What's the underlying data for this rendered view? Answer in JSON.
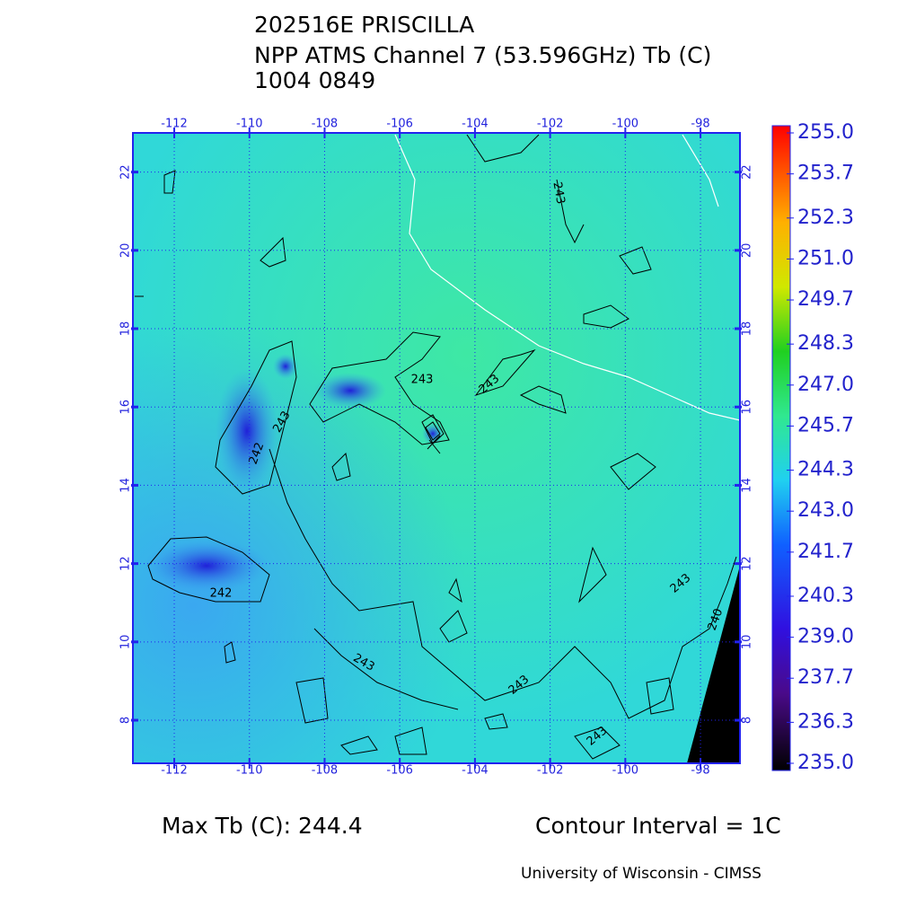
{
  "header": {
    "lines": [
      "202516E PRISCILLA",
      "NPP ATMS Channel 7 (53.596GHz) Tb (C)",
      "1004 0849"
    ]
  },
  "map": {
    "lonlim": [
      -113.1,
      -96.95
    ],
    "latlim": [
      6.9,
      23
    ],
    "lonticks": [
      -112,
      -110,
      -108,
      -106,
      -104,
      -102,
      -100,
      -98
    ],
    "latticks": [
      8,
      10,
      12,
      14,
      16,
      18,
      20,
      22
    ]
  },
  "colorbar": {
    "range": [
      235,
      255
    ],
    "ticks": [
      {
        "value": 255,
        "label": "255.0"
      },
      253.7,
      252.3,
      {
        "value": 251,
        "label": "251.0"
      },
      249.7,
      248.3,
      {
        "value": 247,
        "label": "247.0"
      },
      245.7,
      244.3,
      {
        "value": 243,
        "label": "243.0"
      },
      241.7,
      240.3,
      {
        "value": 239,
        "label": "239.0"
      },
      237.7,
      236.3,
      {
        "value": 235,
        "label": "235.0"
      }
    ]
  },
  "contour_labels": [
    "243",
    "243",
    "243",
    "242",
    "243",
    "242",
    "243",
    "243",
    "243",
    "243",
    "240"
  ],
  "footer": {
    "max_tb": "Max Tb (C): 244.4",
    "contour_interval": "Contour Interval = 1C",
    "credit": "University of Wisconsin - CIMSS"
  }
}
